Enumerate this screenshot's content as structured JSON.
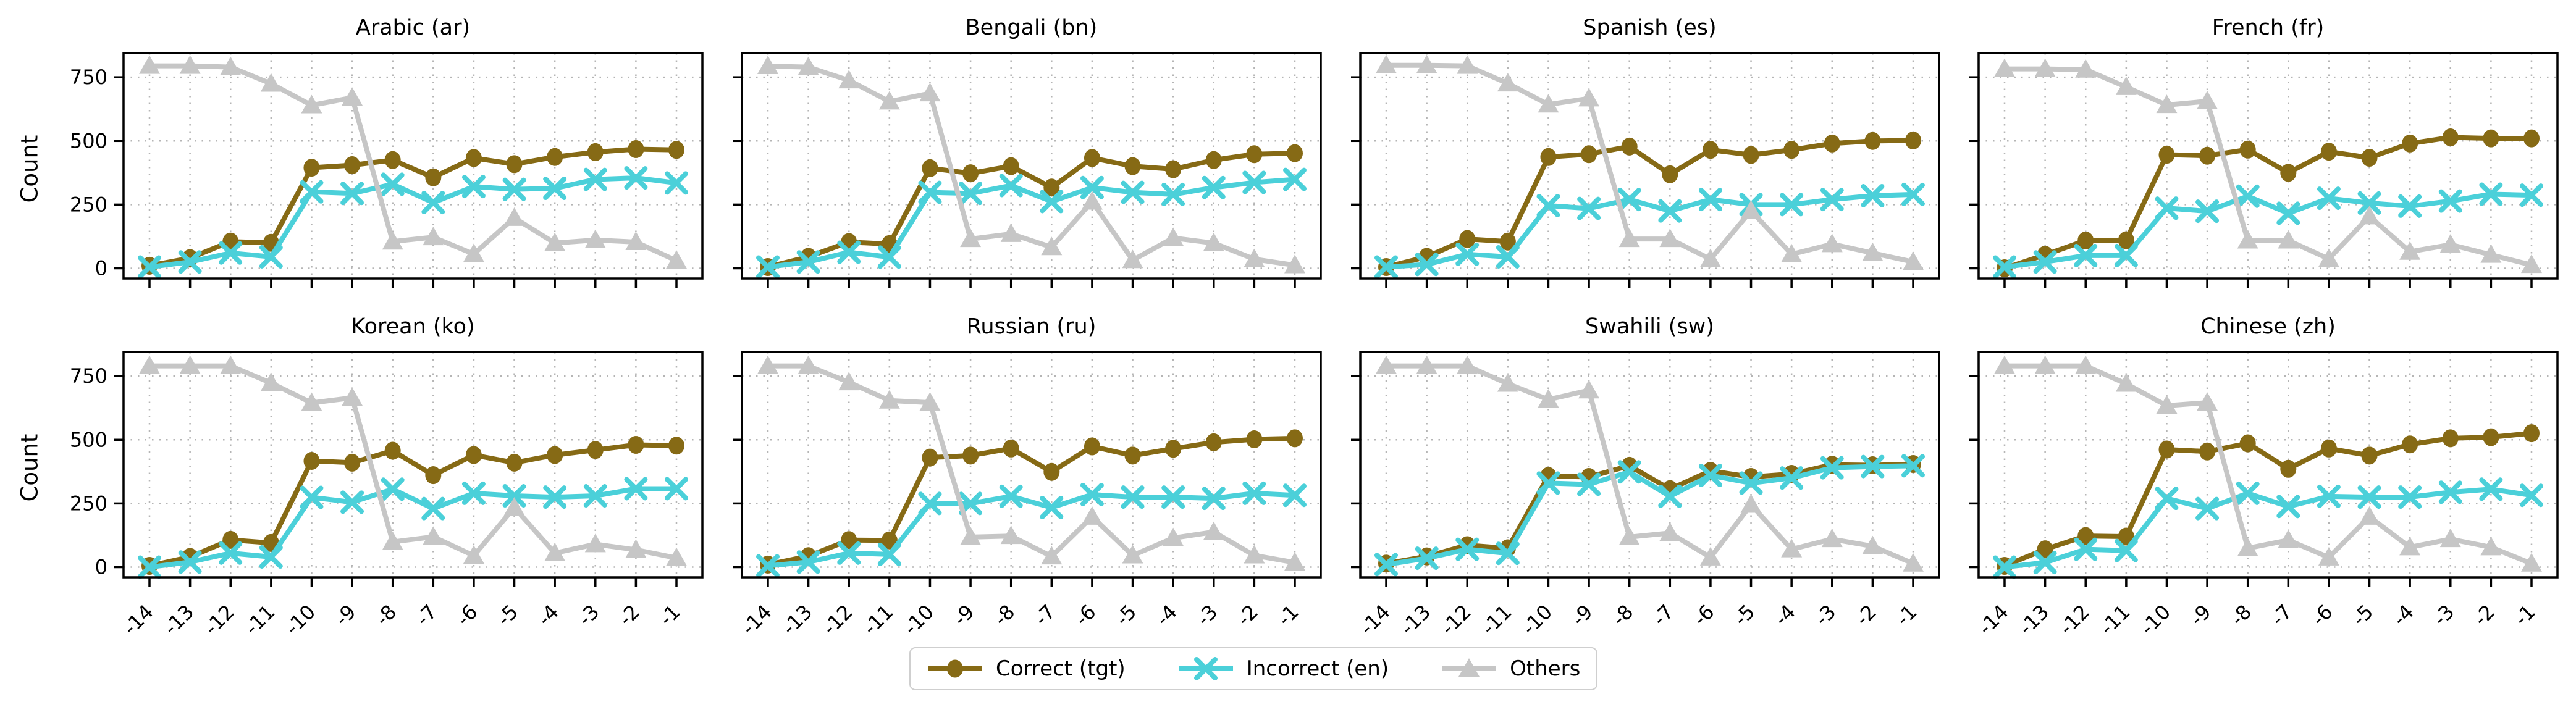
{
  "figure": {
    "ylabel": "Count",
    "yticks": [
      0,
      250,
      500,
      750
    ],
    "ylim": [
      -40,
      845
    ],
    "x_ticklabels": [
      "-14",
      "-13",
      "-12",
      "-11",
      "-10",
      "-9",
      "-8",
      "-7",
      "-6",
      "-5",
      "-4",
      "-3",
      "-2",
      "-1"
    ],
    "grid": "dotted"
  },
  "legend": {
    "position": "bottom-center",
    "items": [
      {
        "key": "correct-tgt",
        "label": "Correct (tgt)",
        "color": "#866a15",
        "marker": "circle"
      },
      {
        "key": "incorrect-en",
        "label": "Incorrect (en)",
        "color": "#4bd0d9",
        "marker": "x"
      },
      {
        "key": "others",
        "label": "Others",
        "color": "#c6c6c6",
        "marker": "triangle"
      }
    ]
  },
  "chart_data": [
    {
      "type": "line",
      "title": "Arabic (ar)",
      "x": [
        -14,
        -13,
        -12,
        -11,
        -10,
        -9,
        -8,
        -7,
        -6,
        -5,
        -4,
        -3,
        -2,
        -1
      ],
      "xlabel": "",
      "ylabel": "Count",
      "ylim": [
        -40,
        845
      ],
      "legend_position": "figure-bottom",
      "series": [
        {
          "name": "Correct (tgt)",
          "values": [
            10,
            40,
            105,
            100,
            395,
            405,
            425,
            357,
            433,
            409,
            437,
            456,
            468,
            465
          ]
        },
        {
          "name": "Incorrect (en)",
          "values": [
            5,
            25,
            60,
            45,
            300,
            294,
            330,
            258,
            321,
            310,
            314,
            349,
            355,
            335
          ]
        },
        {
          "name": "Others",
          "values": [
            795,
            795,
            790,
            725,
            640,
            670,
            105,
            122,
            56,
            198,
            99,
            111,
            103,
            30
          ]
        }
      ]
    },
    {
      "type": "line",
      "title": "Bengali (bn)",
      "x": [
        -14,
        -13,
        -12,
        -11,
        -10,
        -9,
        -8,
        -7,
        -6,
        -5,
        -4,
        -3,
        -2,
        -1
      ],
      "xlabel": "",
      "ylabel": "",
      "ylim": [
        -40,
        845
      ],
      "legend_position": "figure-bottom",
      "series": [
        {
          "name": "Correct (tgt)",
          "values": [
            5,
            45,
            103,
            95,
            393,
            373,
            401,
            317,
            433,
            401,
            389,
            425,
            448,
            452
          ]
        },
        {
          "name": "Incorrect (en)",
          "values": [
            5,
            25,
            63,
            44,
            298,
            294,
            325,
            262,
            317,
            298,
            290,
            317,
            337,
            349
          ]
        },
        {
          "name": "Others",
          "values": [
            794,
            790,
            738,
            655,
            687,
            115,
            135,
            83,
            262,
            32,
            119,
            99,
            36,
            12
          ]
        }
      ]
    },
    {
      "type": "line",
      "title": "Spanish (es)",
      "x": [
        -14,
        -13,
        -12,
        -11,
        -10,
        -9,
        -8,
        -7,
        -6,
        -5,
        -4,
        -3,
        -2,
        -1
      ],
      "xlabel": "",
      "ylabel": "",
      "ylim": [
        -40,
        845
      ],
      "legend_position": "figure-bottom",
      "series": [
        {
          "name": "Correct (tgt)",
          "values": [
            5,
            45,
            115,
            105,
            437,
            448,
            478,
            369,
            465,
            445,
            465,
            490,
            500,
            502
          ]
        },
        {
          "name": "Incorrect (en)",
          "values": [
            5,
            15,
            55,
            45,
            246,
            235,
            270,
            225,
            270,
            250,
            250,
            270,
            285,
            290
          ]
        },
        {
          "name": "Others",
          "values": [
            797,
            797,
            795,
            726,
            643,
            667,
            115,
            115,
            36,
            226,
            55,
            95,
            60,
            25
          ]
        }
      ]
    },
    {
      "type": "line",
      "title": "French (fr)",
      "x": [
        -14,
        -13,
        -12,
        -11,
        -10,
        -9,
        -8,
        -7,
        -6,
        -5,
        -4,
        -3,
        -2,
        -1
      ],
      "xlabel": "",
      "ylabel": "",
      "ylim": [
        -40,
        845
      ],
      "legend_position": "figure-bottom",
      "series": [
        {
          "name": "Correct (tgt)",
          "values": [
            0,
            53,
            109,
            110,
            446,
            442,
            466,
            375,
            458,
            434,
            490,
            514,
            510,
            510
          ]
        },
        {
          "name": "Incorrect (en)",
          "values": [
            5,
            25,
            50,
            50,
            236,
            224,
            283,
            216,
            275,
            256,
            244,
            264,
            291,
            287
          ]
        },
        {
          "name": "Others",
          "values": [
            783,
            783,
            780,
            712,
            641,
            656,
            109,
            109,
            37,
            204,
            65,
            93,
            53,
            13
          ]
        }
      ]
    },
    {
      "type": "line",
      "title": "Korean (ko)",
      "x": [
        -14,
        -13,
        -12,
        -11,
        -10,
        -9,
        -8,
        -7,
        -6,
        -5,
        -4,
        -3,
        -2,
        -1
      ],
      "xlabel": "",
      "ylabel": "Count",
      "ylim": [
        -40,
        845
      ],
      "legend_position": "figure-bottom",
      "series": [
        {
          "name": "Correct (tgt)",
          "values": [
            5,
            40,
            107,
            95,
            417,
            410,
            457,
            361,
            440,
            410,
            440,
            460,
            480,
            477
          ]
        },
        {
          "name": "Incorrect (en)",
          "values": [
            0,
            20,
            55,
            40,
            274,
            255,
            306,
            230,
            290,
            280,
            275,
            280,
            308,
            308
          ]
        },
        {
          "name": "Others",
          "values": [
            790,
            790,
            790,
            723,
            645,
            665,
            99,
            119,
            45,
            234,
            55,
            90,
            68,
            36
          ]
        }
      ]
    },
    {
      "type": "line",
      "title": "Russian (ru)",
      "x": [
        -14,
        -13,
        -12,
        -11,
        -10,
        -9,
        -8,
        -7,
        -6,
        -5,
        -4,
        -3,
        -2,
        -1
      ],
      "xlabel": "",
      "ylabel": "",
      "ylim": [
        -40,
        845
      ],
      "legend_position": "figure-bottom",
      "series": [
        {
          "name": "Correct (tgt)",
          "values": [
            10,
            43,
            106,
            105,
            430,
            438,
            466,
            374,
            474,
            438,
            465,
            490,
            502,
            506
          ]
        },
        {
          "name": "Incorrect (en)",
          "values": [
            5,
            20,
            55,
            50,
            250,
            250,
            278,
            234,
            285,
            275,
            275,
            270,
            290,
            282
          ]
        },
        {
          "name": "Others",
          "values": [
            790,
            790,
            726,
            654,
            646,
            118,
            122,
            42,
            198,
            46,
            114,
            138,
            46,
            18
          ]
        }
      ]
    },
    {
      "type": "line",
      "title": "Swahili (sw)",
      "x": [
        -14,
        -13,
        -12,
        -11,
        -10,
        -9,
        -8,
        -7,
        -6,
        -5,
        -4,
        -3,
        -2,
        -1
      ],
      "xlabel": "",
      "ylabel": "",
      "ylim": [
        -40,
        845
      ],
      "legend_position": "figure-bottom",
      "series": [
        {
          "name": "Correct (tgt)",
          "values": [
            14,
            42,
            86,
            74,
            358,
            354,
            398,
            306,
            378,
            354,
            366,
            402,
            400,
            405
          ]
        },
        {
          "name": "Incorrect (en)",
          "values": [
            10,
            35,
            70,
            54,
            330,
            325,
            374,
            278,
            360,
            330,
            350,
            390,
            395,
            398
          ]
        },
        {
          "name": "Others",
          "values": [
            790,
            790,
            790,
            720,
            658,
            694,
            118,
            134,
            38,
            245,
            70,
            110,
            82,
            14
          ]
        }
      ]
    },
    {
      "type": "line",
      "title": "Chinese (zh)",
      "x": [
        -14,
        -13,
        -12,
        -11,
        -10,
        -9,
        -8,
        -7,
        -6,
        -5,
        -4,
        -3,
        -2,
        -1
      ],
      "xlabel": "",
      "ylabel": "",
      "ylim": [
        -40,
        845
      ],
      "legend_position": "figure-bottom",
      "series": [
        {
          "name": "Correct (tgt)",
          "values": [
            5,
            70,
            122,
            120,
            462,
            454,
            486,
            386,
            466,
            438,
            482,
            506,
            510,
            526
          ]
        },
        {
          "name": "Incorrect (en)",
          "values": [
            0,
            18,
            70,
            65,
            270,
            230,
            290,
            238,
            278,
            275,
            275,
            294,
            306,
            282
          ]
        },
        {
          "name": "Others",
          "values": [
            790,
            790,
            790,
            720,
            634,
            646,
            74,
            106,
            38,
            198,
            78,
            110,
            78,
            14
          ]
        }
      ]
    }
  ]
}
